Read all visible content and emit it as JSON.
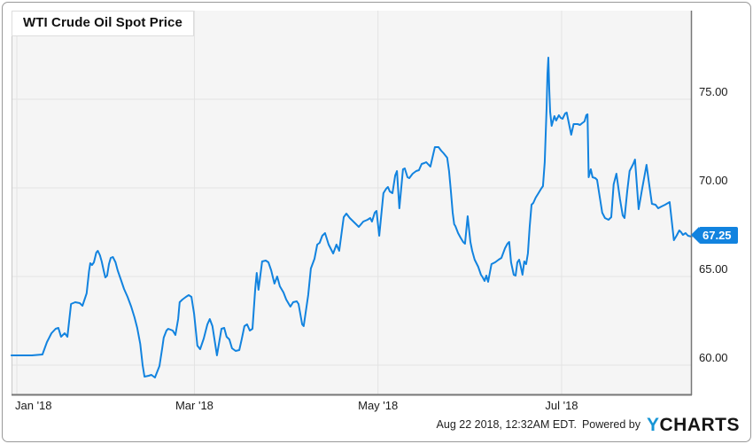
{
  "chart": {
    "title": "WTI Crude Oil Spot Price",
    "last_price_label": "67.25"
  },
  "footer": {
    "timestamp": "Aug 22 2018, 12:32AM EDT.",
    "powered_by": "Powered by",
    "logo_y": "Y",
    "logo_rest": "CHARTS"
  },
  "chart_data": {
    "type": "line",
    "title": "WTI Crude Oil Spot Price",
    "series_name": "WTI Crude Oil Spot Price",
    "last_value": 67.25,
    "line_color": "#1283df",
    "badge_color": "#1283df",
    "plot_bg_color": "#f5f5f5",
    "grid_color": "#e3e3e3",
    "axis_color": "#777777",
    "grid": true,
    "legend": "none",
    "x_axis": {
      "unit": "days since 2018-01-01",
      "start_date": "2018-01-01",
      "range": [
        -1.8,
        224.3
      ],
      "ticks": [
        {
          "day": 0,
          "label": "Jan '18"
        },
        {
          "day": 59,
          "label": "Mar '18"
        },
        {
          "day": 120,
          "label": "May '18"
        },
        {
          "day": 181,
          "label": "Jul '18"
        }
      ]
    },
    "y_axis": {
      "range": [
        58.3,
        80.0
      ],
      "ticks": [
        75,
        70,
        65,
        60
      ],
      "tick_labels": [
        "75.00",
        "70.00",
        "65.00",
        "60.00"
      ],
      "side": "right"
    },
    "points": [
      [
        -1.8,
        60.55
      ],
      [
        1.5,
        60.55
      ],
      [
        5,
        60.55
      ],
      [
        8.5,
        60.6
      ],
      [
        10,
        61.3
      ],
      [
        11.5,
        61.8
      ],
      [
        12.9,
        62.05
      ],
      [
        13.8,
        62.1
      ],
      [
        14.7,
        61.6
      ],
      [
        15.9,
        61.8
      ],
      [
        16.8,
        61.6
      ],
      [
        18,
        63.45
      ],
      [
        19.4,
        63.55
      ],
      [
        20.9,
        63.5
      ],
      [
        21.8,
        63.35
      ],
      [
        23.2,
        64.05
      ],
      [
        24,
        65.3
      ],
      [
        24.4,
        65.75
      ],
      [
        25,
        65.65
      ],
      [
        25.6,
        65.8
      ],
      [
        26.4,
        66.35
      ],
      [
        26.9,
        66.45
      ],
      [
        27.6,
        66.2
      ],
      [
        28.2,
        65.85
      ],
      [
        28.9,
        65.3
      ],
      [
        29.4,
        64.95
      ],
      [
        30,
        65.05
      ],
      [
        30.6,
        65.7
      ],
      [
        31.2,
        66.05
      ],
      [
        31.9,
        66.1
      ],
      [
        32.8,
        65.8
      ],
      [
        33.5,
        65.35
      ],
      [
        34.6,
        64.8
      ],
      [
        35.6,
        64.3
      ],
      [
        36.8,
        63.85
      ],
      [
        38,
        63.3
      ],
      [
        39.1,
        62.7
      ],
      [
        40,
        62.1
      ],
      [
        41,
        61.2
      ],
      [
        41.8,
        60.0
      ],
      [
        42.4,
        59.35
      ],
      [
        43.8,
        59.4
      ],
      [
        44.7,
        59.45
      ],
      [
        45.9,
        59.3
      ],
      [
        47.4,
        59.95
      ],
      [
        48.3,
        60.95
      ],
      [
        48.8,
        61.55
      ],
      [
        49.7,
        61.95
      ],
      [
        50.3,
        62.05
      ],
      [
        51.8,
        61.95
      ],
      [
        52.7,
        61.7
      ],
      [
        53.6,
        62.6
      ],
      [
        54.1,
        63.55
      ],
      [
        55,
        63.7
      ],
      [
        56.2,
        63.85
      ],
      [
        57.1,
        63.95
      ],
      [
        58,
        63.85
      ],
      [
        58.9,
        62.9
      ],
      [
        60,
        61.1
      ],
      [
        60.9,
        60.9
      ],
      [
        62.1,
        61.5
      ],
      [
        63.3,
        62.3
      ],
      [
        64.1,
        62.6
      ],
      [
        65,
        62.2
      ],
      [
        66.5,
        60.55
      ],
      [
        68,
        62.05
      ],
      [
        68.9,
        62.1
      ],
      [
        69.7,
        61.6
      ],
      [
        70.6,
        61.45
      ],
      [
        71.5,
        60.95
      ],
      [
        72.7,
        60.8
      ],
      [
        73.9,
        60.85
      ],
      [
        74.7,
        61.45
      ],
      [
        75.6,
        62.2
      ],
      [
        76.5,
        62.3
      ],
      [
        77.4,
        61.95
      ],
      [
        78.3,
        62.05
      ],
      [
        79.2,
        64.3
      ],
      [
        79.7,
        65.2
      ],
      [
        80.3,
        64.25
      ],
      [
        81.5,
        65.85
      ],
      [
        82.7,
        65.9
      ],
      [
        83.6,
        65.8
      ],
      [
        84.5,
        65.35
      ],
      [
        85.6,
        64.6
      ],
      [
        86.5,
        65.0
      ],
      [
        87.4,
        64.45
      ],
      [
        88.6,
        64.1
      ],
      [
        89.5,
        63.7
      ],
      [
        90.9,
        63.3
      ],
      [
        91.8,
        63.55
      ],
      [
        93,
        63.6
      ],
      [
        93.6,
        63.45
      ],
      [
        94.8,
        62.3
      ],
      [
        95.3,
        62.2
      ],
      [
        96.8,
        63.95
      ],
      [
        97.7,
        65.45
      ],
      [
        98.9,
        66.0
      ],
      [
        99.8,
        66.8
      ],
      [
        100.6,
        66.9
      ],
      [
        101.5,
        67.3
      ],
      [
        102.4,
        67.45
      ],
      [
        103.6,
        66.8
      ],
      [
        105.1,
        66.3
      ],
      [
        106.2,
        66.8
      ],
      [
        107.1,
        66.45
      ],
      [
        108.6,
        68.35
      ],
      [
        109.5,
        68.55
      ],
      [
        110.6,
        68.3
      ],
      [
        112.1,
        68.05
      ],
      [
        113.6,
        67.8
      ],
      [
        115.1,
        68.1
      ],
      [
        116.5,
        68.2
      ],
      [
        117.4,
        68.3
      ],
      [
        118,
        68.1
      ],
      [
        118.9,
        68.6
      ],
      [
        119.5,
        68.7
      ],
      [
        120.4,
        67.3
      ],
      [
        121.8,
        69.7
      ],
      [
        122.7,
        69.95
      ],
      [
        123.3,
        70.05
      ],
      [
        123.9,
        69.8
      ],
      [
        124.8,
        69.7
      ],
      [
        125.7,
        70.7
      ],
      [
        126.3,
        70.95
      ],
      [
        127.1,
        68.85
      ],
      [
        128.3,
        71.05
      ],
      [
        128.9,
        71.1
      ],
      [
        129.8,
        70.6
      ],
      [
        130.4,
        70.55
      ],
      [
        131.5,
        70.8
      ],
      [
        132.7,
        70.95
      ],
      [
        133.6,
        71.0
      ],
      [
        134.5,
        71.35
      ],
      [
        135.4,
        71.4
      ],
      [
        136,
        71.45
      ],
      [
        137.4,
        71.2
      ],
      [
        138.9,
        72.3
      ],
      [
        140.1,
        72.3
      ],
      [
        141,
        72.1
      ],
      [
        141.8,
        71.95
      ],
      [
        143,
        71.7
      ],
      [
        143.6,
        70.95
      ],
      [
        144.2,
        69.85
      ],
      [
        144.8,
        68.6
      ],
      [
        145.3,
        67.95
      ],
      [
        145.7,
        67.85
      ],
      [
        146.6,
        67.45
      ],
      [
        147.4,
        67.2
      ],
      [
        148.3,
        66.95
      ],
      [
        148.9,
        66.85
      ],
      [
        149.8,
        68.4
      ],
      [
        150.7,
        66.95
      ],
      [
        151.3,
        66.45
      ],
      [
        152.1,
        65.95
      ],
      [
        153.3,
        65.55
      ],
      [
        154.2,
        65.1
      ],
      [
        154.8,
        64.95
      ],
      [
        155.4,
        64.75
      ],
      [
        156,
        65.05
      ],
      [
        156.6,
        64.7
      ],
      [
        157.7,
        65.7
      ],
      [
        158.9,
        65.8
      ],
      [
        160.1,
        65.95
      ],
      [
        161,
        66.05
      ],
      [
        162.2,
        66.6
      ],
      [
        163,
        66.85
      ],
      [
        163.6,
        66.95
      ],
      [
        164.2,
        65.8
      ],
      [
        165.1,
        65.1
      ],
      [
        165.7,
        65.05
      ],
      [
        166.3,
        65.8
      ],
      [
        166.9,
        65.95
      ],
      [
        167.4,
        65.6
      ],
      [
        168,
        65.1
      ],
      [
        168.6,
        65.85
      ],
      [
        169.2,
        65.7
      ],
      [
        169.8,
        66.3
      ],
      [
        170.4,
        67.8
      ],
      [
        171,
        69.05
      ],
      [
        171.6,
        69.15
      ],
      [
        172.4,
        69.45
      ],
      [
        173.3,
        69.7
      ],
      [
        174.2,
        69.95
      ],
      [
        174.8,
        70.1
      ],
      [
        175.4,
        71.45
      ],
      [
        176,
        74.5
      ],
      [
        176.3,
        76.45
      ],
      [
        176.6,
        77.35
      ],
      [
        176.9,
        75.6
      ],
      [
        177.2,
        74.3
      ],
      [
        177.7,
        73.5
      ],
      [
        178.6,
        74.05
      ],
      [
        179.2,
        73.8
      ],
      [
        180.1,
        74.1
      ],
      [
        180.7,
        73.95
      ],
      [
        181.3,
        73.9
      ],
      [
        182.2,
        74.2
      ],
      [
        182.7,
        74.25
      ],
      [
        184.2,
        73.0
      ],
      [
        185,
        73.6
      ],
      [
        186.3,
        73.6
      ],
      [
        187.1,
        73.55
      ],
      [
        187.8,
        73.65
      ],
      [
        188.6,
        73.75
      ],
      [
        189.2,
        74.1
      ],
      [
        189.6,
        74.15
      ],
      [
        190,
        70.6
      ],
      [
        190.7,
        71.05
      ],
      [
        191.3,
        70.6
      ],
      [
        192.2,
        70.55
      ],
      [
        192.8,
        70.45
      ],
      [
        193.6,
        69.55
      ],
      [
        194.5,
        68.6
      ],
      [
        195.4,
        68.3
      ],
      [
        196.6,
        68.2
      ],
      [
        197.5,
        68.35
      ],
      [
        198.3,
        70.2
      ],
      [
        199.2,
        70.8
      ],
      [
        200.4,
        69.35
      ],
      [
        201.3,
        68.45
      ],
      [
        201.9,
        68.3
      ],
      [
        202.8,
        69.8
      ],
      [
        203.6,
        70.95
      ],
      [
        204.8,
        71.35
      ],
      [
        205.4,
        71.6
      ],
      [
        206.6,
        68.8
      ],
      [
        207.7,
        69.9
      ],
      [
        209.2,
        71.3
      ],
      [
        210.1,
        70.2
      ],
      [
        211,
        69.1
      ],
      [
        212.2,
        69.05
      ],
      [
        213.1,
        68.85
      ],
      [
        214.2,
        68.95
      ],
      [
        215.4,
        69.05
      ],
      [
        216.9,
        69.2
      ],
      [
        218.3,
        67.05
      ],
      [
        219.2,
        67.3
      ],
      [
        220.1,
        67.6
      ],
      [
        220.7,
        67.5
      ],
      [
        221.3,
        67.35
      ],
      [
        222.2,
        67.45
      ],
      [
        223,
        67.3
      ],
      [
        224.2,
        67.25
      ]
    ]
  }
}
